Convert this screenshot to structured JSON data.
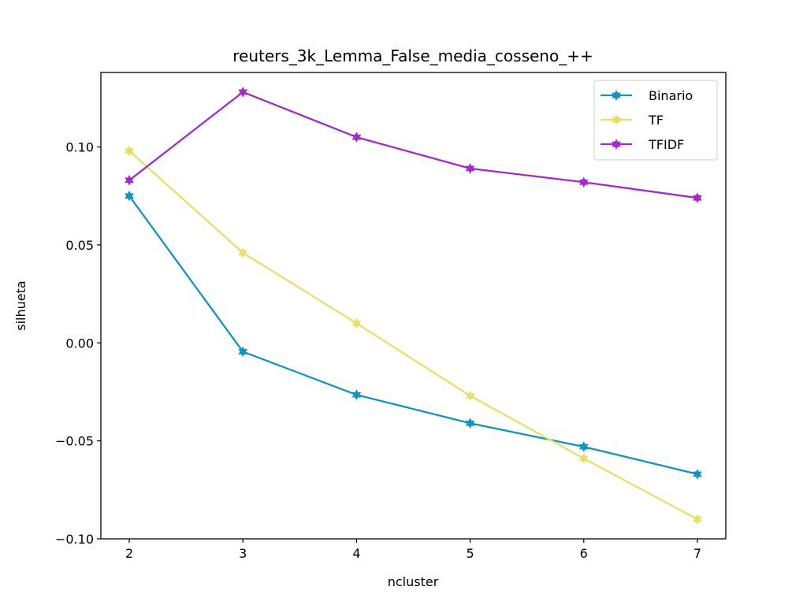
{
  "chart_data": {
    "type": "line",
    "title": "reuters_3k_Lemma_False_media_cosseno_++",
    "xlabel": "ncluster",
    "ylabel": "silhueta",
    "x": [
      2,
      3,
      4,
      5,
      6,
      7
    ],
    "xlim": [
      1.75,
      7.25
    ],
    "ylim": [
      -0.1,
      0.138
    ],
    "xticks": [
      2,
      3,
      4,
      5,
      6,
      7
    ],
    "yticks": [
      -0.1,
      -0.05,
      0.0,
      0.05,
      0.1
    ],
    "ytick_labels": [
      "−0.10",
      "−0.05",
      "0.00",
      "0.05",
      "0.10"
    ],
    "grid": false,
    "legend_position": "top-right",
    "marker": "star",
    "series": [
      {
        "name": "Binario",
        "color": "#1193c1",
        "values": [
          0.075,
          -0.0045,
          -0.0265,
          -0.041,
          -0.053,
          -0.067
        ]
      },
      {
        "name": "TF",
        "color": "#e6e06a",
        "values": [
          0.098,
          0.046,
          0.01,
          -0.027,
          -0.059,
          -0.09
        ]
      },
      {
        "name": "TFIDF",
        "color": "#a22ac5",
        "values": [
          0.083,
          0.128,
          0.105,
          0.089,
          0.082,
          0.074
        ]
      }
    ]
  }
}
